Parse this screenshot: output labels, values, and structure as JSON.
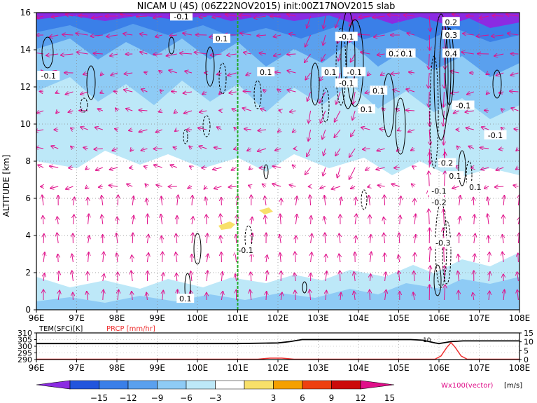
{
  "title": "NICAM U (4S) (06Z22NOV2015) init:00Z17NOV2015 slab",
  "chart_data": [
    {
      "type": "heatmap",
      "title": "NICAM U (4S) (06Z22NOV2015) init:00Z17NOV2015 slab",
      "xlabel": "",
      "ylabel": "ALTITUDE [km]",
      "x_ticks": [
        "96E",
        "97E",
        "98E",
        "99E",
        "100E",
        "101E",
        "102E",
        "103E",
        "104E",
        "105E",
        "106E",
        "107E",
        "108E"
      ],
      "x_range": [
        96,
        108
      ],
      "y_ticks": [
        "0",
        "2",
        "4",
        "6",
        "8",
        "10",
        "12",
        "14",
        "16"
      ],
      "y_range": [
        0,
        16
      ],
      "grid": "dotted",
      "marker_lon": 101,
      "contour_labels": [
        {
          "text": "-0.1",
          "lon": 99.6,
          "alt": 15.8
        },
        {
          "text": "0.1",
          "lon": 100.6,
          "alt": 14.6
        },
        {
          "text": "-0.1",
          "lon": 96.3,
          "alt": 12.6
        },
        {
          "text": "0.1",
          "lon": 101.7,
          "alt": 12.8
        },
        {
          "text": "-0.1",
          "lon": 103.7,
          "alt": 14.7
        },
        {
          "text": "0.1",
          "lon": 103.3,
          "alt": 12.8
        },
        {
          "text": "-0.1",
          "lon": 103.9,
          "alt": 12.8
        },
        {
          "text": "-0.1",
          "lon": 103.7,
          "alt": 12.2
        },
        {
          "text": "0.1",
          "lon": 104.5,
          "alt": 11.8
        },
        {
          "text": "0.1",
          "lon": 104.2,
          "alt": 10.8
        },
        {
          "text": "0.2",
          "lon": 104.9,
          "alt": 13.8
        },
        {
          "text": "0.1",
          "lon": 105.2,
          "alt": 13.8
        },
        {
          "text": "0.2",
          "lon": 106.3,
          "alt": 15.5
        },
        {
          "text": "0.3",
          "lon": 106.3,
          "alt": 14.8
        },
        {
          "text": "0.4",
          "lon": 106.3,
          "alt": 13.8
        },
        {
          "text": "-0.1",
          "lon": 106.6,
          "alt": 11.0
        },
        {
          "text": "-0.1",
          "lon": 107.4,
          "alt": 9.4
        },
        {
          "text": "0.2",
          "lon": 106.2,
          "alt": 7.9
        },
        {
          "text": "0.1",
          "lon": 106.4,
          "alt": 7.2
        },
        {
          "text": "0.1",
          "lon": 106.9,
          "alt": 6.6
        },
        {
          "text": "-0.1",
          "lon": 106.0,
          "alt": 6.4
        },
        {
          "text": "-0.2",
          "lon": 106.0,
          "alt": 5.8
        },
        {
          "text": "-0.3",
          "lon": 106.1,
          "alt": 3.6
        },
        {
          "text": "-0.1",
          "lon": 101.2,
          "alt": 3.2
        },
        {
          "text": "0.1",
          "lon": 99.7,
          "alt": 0.6
        }
      ],
      "colorbar": {
        "unit": "[m/s]",
        "ticks": [
          "−15",
          "−12",
          "−9",
          "−6",
          "−3",
          "3",
          "6",
          "9",
          "12",
          "15"
        ],
        "colors": [
          "#8b2be2",
          "#2255dd",
          "#3a7fe8",
          "#5aa0ee",
          "#8ecbf5",
          "#bde8f8",
          "#ffffff",
          "#f8e06a",
          "#f5a000",
          "#ee4010",
          "#cc0a0a",
          "#e0108a"
        ],
        "vector_label": "Wx100(vector)"
      }
    },
    {
      "type": "line",
      "title": "",
      "legend": [
        {
          "label": "TEM(SFC)[K]",
          "color": "#000000"
        },
        {
          "label": "PRCP [mm/hr]",
          "color": "#ee3030"
        }
      ],
      "x_ticks": [
        "96E",
        "97E",
        "98E",
        "99E",
        "100E",
        "101E",
        "102E",
        "103E",
        "104E",
        "105E",
        "106E",
        "107E",
        "108E"
      ],
      "left_axis": {
        "ticks": [
          "290",
          "295",
          "300",
          "305",
          "310"
        ],
        "range": [
          290,
          310
        ]
      },
      "right_axis": {
        "ticks": [
          "0",
          "5",
          "10",
          "15"
        ],
        "range": [
          0,
          15
        ]
      },
      "series": [
        {
          "name": "TEM(SFC)[K]",
          "color": "#000000",
          "x": [
            96,
            98,
            100,
            101,
            102,
            102.3,
            102.6,
            103,
            104,
            105,
            105.3,
            105.6,
            105.9,
            106.0,
            106.3,
            106.6,
            107,
            108
          ],
          "y": [
            302,
            302,
            302,
            302,
            302.5,
            303.5,
            305,
            305,
            305,
            305,
            305,
            304.5,
            302.5,
            302,
            303.5,
            304,
            304,
            304
          ]
        },
        {
          "name": "PRCP [mm/hr]",
          "color": "#ee3030",
          "x": [
            96,
            101.5,
            101.8,
            102.1,
            102.4,
            105.9,
            106.05,
            106.2,
            106.3,
            106.4,
            106.55,
            106.7,
            108
          ],
          "y": [
            0.2,
            0.2,
            0.8,
            0.8,
            0.2,
            0.2,
            2,
            7,
            9.5,
            7,
            2,
            0.2,
            0.2
          ]
        }
      ],
      "annotation": {
        "text": "10",
        "x": 105.7,
        "y": 302
      }
    }
  ]
}
